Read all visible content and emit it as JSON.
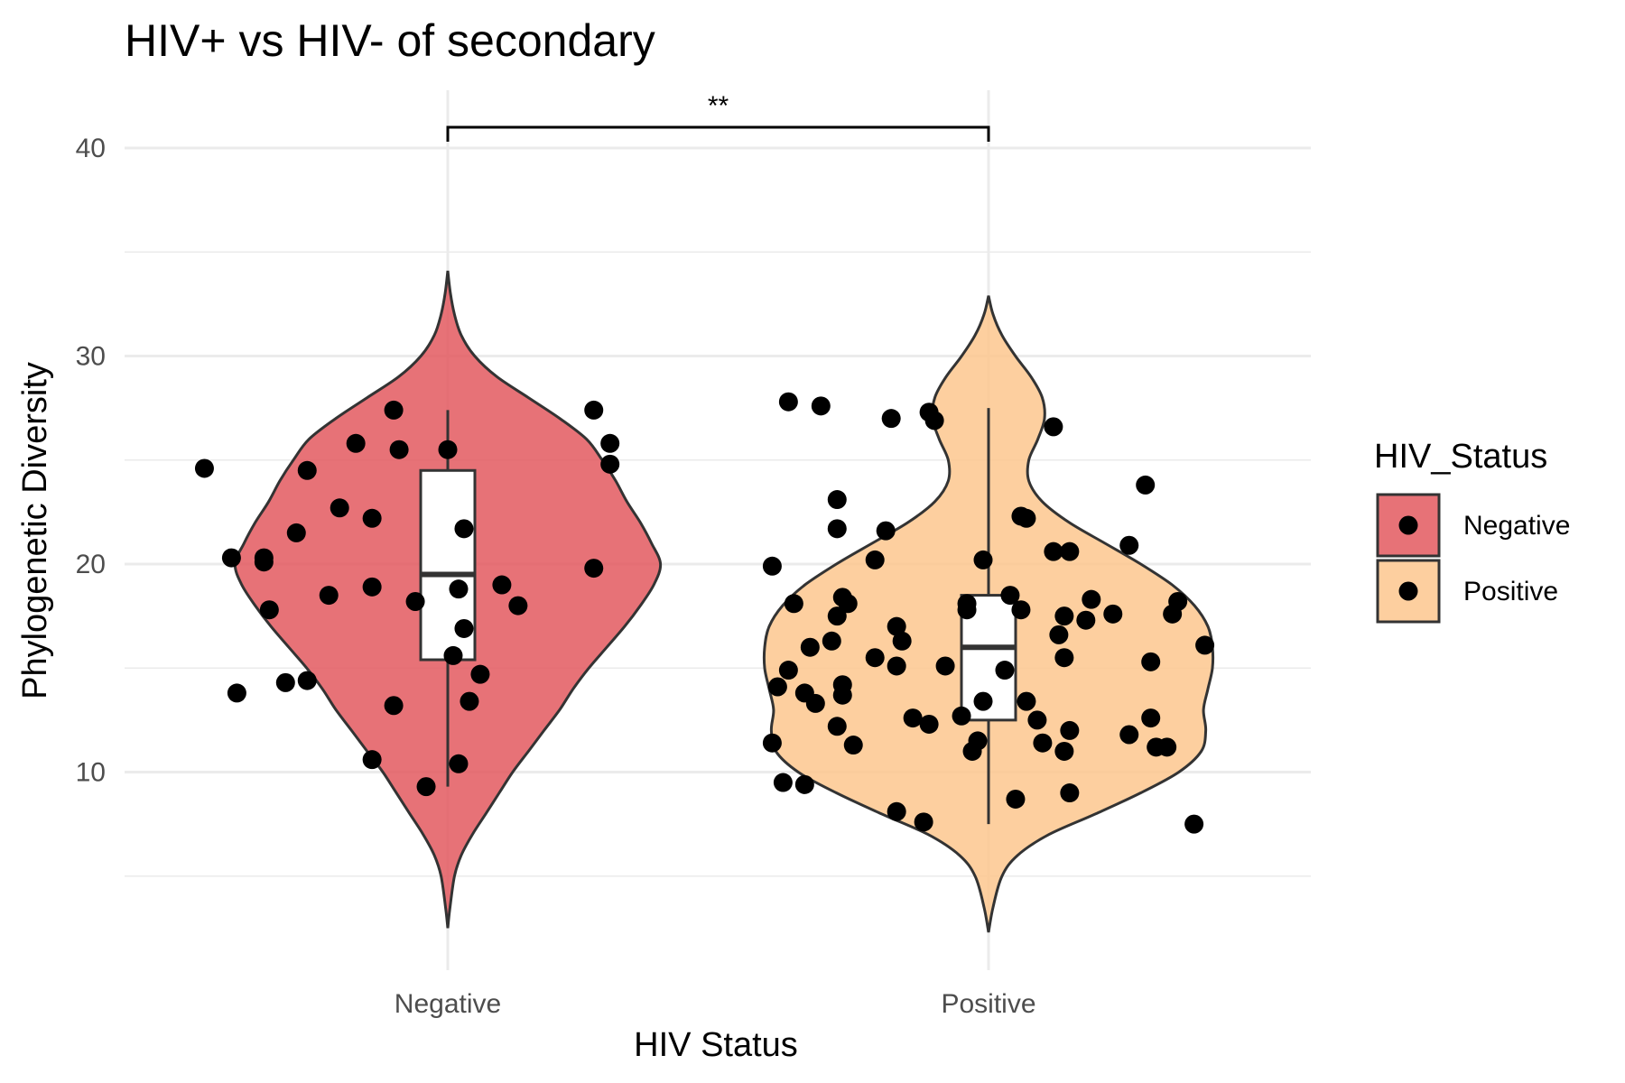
{
  "chart_data": {
    "type": "violin",
    "title": "HIV+ vs HIV- of secondary",
    "xlabel": "HIV Status",
    "ylabel": "Phylogenetic Diversity",
    "categories": [
      "Negative",
      "Positive"
    ],
    "ylim": [
      0,
      44
    ],
    "yticks": [
      "10",
      "20",
      "30",
      "40"
    ],
    "grid": true,
    "legend": {
      "title": "HIV_Status",
      "placement": "right",
      "entries": [
        "Negative",
        "Positive"
      ]
    },
    "colors": {
      "Negative": "#e3595f",
      "Positive": "#fdc78e",
      "outline": "#333333",
      "point": "#000000"
    },
    "significance": {
      "label": "**",
      "from": "Negative",
      "to": "Positive",
      "y": 41
    },
    "groups": [
      {
        "name": "Negative",
        "box": {
          "min": 9.3,
          "q1": 15.4,
          "median": 19.5,
          "q3": 24.5,
          "max": 27.4
        },
        "violin_range": [
          2.5,
          34.1
        ],
        "density": [
          [
            2.5,
            0.0
          ],
          [
            3.5,
            0.01
          ],
          [
            5,
            0.03
          ],
          [
            6,
            0.06
          ],
          [
            7,
            0.11
          ],
          [
            8,
            0.17
          ],
          [
            9,
            0.23
          ],
          [
            10,
            0.29
          ],
          [
            11,
            0.36
          ],
          [
            12,
            0.43
          ],
          [
            13,
            0.5
          ],
          [
            14,
            0.56
          ],
          [
            15,
            0.63
          ],
          [
            16,
            0.71
          ],
          [
            17,
            0.79
          ],
          [
            18,
            0.86
          ],
          [
            19,
            0.92
          ],
          [
            20,
            0.95
          ],
          [
            21,
            0.91
          ],
          [
            22,
            0.86
          ],
          [
            23,
            0.8
          ],
          [
            24,
            0.75
          ],
          [
            25,
            0.69
          ],
          [
            26,
            0.62
          ],
          [
            27,
            0.5
          ],
          [
            28,
            0.36
          ],
          [
            29,
            0.22
          ],
          [
            30,
            0.12
          ],
          [
            31,
            0.06
          ],
          [
            32,
            0.03
          ],
          [
            33,
            0.012
          ],
          [
            34.1,
            0.0
          ]
        ],
        "points": [
          [
            -0.45,
            24.6
          ],
          [
            -0.4,
            20.3
          ],
          [
            -0.39,
            13.8
          ],
          [
            -0.34,
            20.1
          ],
          [
            -0.34,
            20.3
          ],
          [
            -0.33,
            17.8
          ],
          [
            -0.3,
            14.3
          ],
          [
            -0.28,
            21.5
          ],
          [
            -0.26,
            14.4
          ],
          [
            -0.26,
            24.5
          ],
          [
            -0.22,
            18.5
          ],
          [
            -0.2,
            22.7
          ],
          [
            -0.17,
            25.8
          ],
          [
            -0.14,
            10.6
          ],
          [
            -0.14,
            18.9
          ],
          [
            -0.14,
            22.2
          ],
          [
            -0.1,
            13.2
          ],
          [
            -0.1,
            27.4
          ],
          [
            -0.09,
            25.5
          ],
          [
            -0.06,
            18.2
          ],
          [
            -0.04,
            9.3
          ],
          [
            0.0,
            25.5
          ],
          [
            0.01,
            15.6
          ],
          [
            0.02,
            18.8
          ],
          [
            0.02,
            10.4
          ],
          [
            0.03,
            21.7
          ],
          [
            0.03,
            16.9
          ],
          [
            0.04,
            13.4
          ],
          [
            0.06,
            14.7
          ],
          [
            0.1,
            19.0
          ],
          [
            0.13,
            18.0
          ],
          [
            0.27,
            19.8
          ],
          [
            0.27,
            27.4
          ],
          [
            0.3,
            25.8
          ],
          [
            0.3,
            24.8
          ]
        ]
      },
      {
        "name": "Positive",
        "box": {
          "min": 7.5,
          "q1": 12.5,
          "median": 16.0,
          "q3": 18.5,
          "max": 27.5
        },
        "violin_range": [
          2.3,
          32.9
        ],
        "density": [
          [
            2.3,
            0.0
          ],
          [
            3.5,
            0.02
          ],
          [
            5,
            0.06
          ],
          [
            6,
            0.13
          ],
          [
            7,
            0.27
          ],
          [
            8,
            0.48
          ],
          [
            9,
            0.68
          ],
          [
            10,
            0.85
          ],
          [
            11,
            0.95
          ],
          [
            12,
            0.97
          ],
          [
            13,
            0.96
          ],
          [
            14,
            0.98
          ],
          [
            15,
            1.0
          ],
          [
            16,
            1.0
          ],
          [
            17,
            0.98
          ],
          [
            18,
            0.92
          ],
          [
            19,
            0.82
          ],
          [
            20,
            0.68
          ],
          [
            21,
            0.52
          ],
          [
            22,
            0.36
          ],
          [
            23,
            0.24
          ],
          [
            24,
            0.18
          ],
          [
            25,
            0.18
          ],
          [
            26,
            0.22
          ],
          [
            27,
            0.25
          ],
          [
            28,
            0.24
          ],
          [
            29,
            0.19
          ],
          [
            30,
            0.12
          ],
          [
            31,
            0.06
          ],
          [
            32,
            0.02
          ],
          [
            32.9,
            0.0
          ]
        ],
        "points": [
          [
            -0.4,
            19.9
          ],
          [
            -0.4,
            11.4
          ],
          [
            -0.39,
            14.1
          ],
          [
            -0.38,
            9.5
          ],
          [
            -0.37,
            14.9
          ],
          [
            -0.37,
            27.8
          ],
          [
            -0.36,
            18.1
          ],
          [
            -0.34,
            9.4
          ],
          [
            -0.34,
            13.8
          ],
          [
            -0.33,
            16.0
          ],
          [
            -0.32,
            13.3
          ],
          [
            -0.31,
            27.6
          ],
          [
            -0.29,
            16.3
          ],
          [
            -0.28,
            12.2
          ],
          [
            -0.28,
            23.1
          ],
          [
            -0.28,
            21.7
          ],
          [
            -0.28,
            17.5
          ],
          [
            -0.27,
            13.7
          ],
          [
            -0.27,
            14.2
          ],
          [
            -0.27,
            18.4
          ],
          [
            -0.26,
            18.1
          ],
          [
            -0.25,
            11.3
          ],
          [
            -0.21,
            15.5
          ],
          [
            -0.21,
            20.2
          ],
          [
            -0.19,
            21.6
          ],
          [
            -0.18,
            27.0
          ],
          [
            -0.17,
            17.0
          ],
          [
            -0.17,
            8.1
          ],
          [
            -0.17,
            15.1
          ],
          [
            -0.16,
            16.3
          ],
          [
            -0.14,
            12.6
          ],
          [
            -0.12,
            7.6
          ],
          [
            -0.11,
            27.3
          ],
          [
            -0.11,
            12.3
          ],
          [
            -0.1,
            26.9
          ],
          [
            -0.08,
            15.1
          ],
          [
            -0.05,
            12.7
          ],
          [
            -0.04,
            18.1
          ],
          [
            -0.04,
            17.8
          ],
          [
            -0.03,
            11.0
          ],
          [
            -0.02,
            11.5
          ],
          [
            -0.01,
            13.4
          ],
          [
            -0.01,
            20.2
          ],
          [
            0.03,
            14.9
          ],
          [
            0.04,
            18.5
          ],
          [
            0.05,
            8.7
          ],
          [
            0.06,
            22.3
          ],
          [
            0.06,
            17.8
          ],
          [
            0.07,
            22.2
          ],
          [
            0.07,
            13.4
          ],
          [
            0.09,
            12.5
          ],
          [
            0.1,
            11.4
          ],
          [
            0.12,
            20.6
          ],
          [
            0.12,
            26.6
          ],
          [
            0.13,
            16.6
          ],
          [
            0.14,
            17.5
          ],
          [
            0.14,
            15.5
          ],
          [
            0.14,
            11.0
          ],
          [
            0.15,
            20.6
          ],
          [
            0.15,
            9.0
          ],
          [
            0.15,
            12.0
          ],
          [
            0.18,
            17.3
          ],
          [
            0.19,
            18.3
          ],
          [
            0.23,
            17.6
          ],
          [
            0.26,
            11.8
          ],
          [
            0.26,
            20.9
          ],
          [
            0.29,
            23.8
          ],
          [
            0.3,
            12.6
          ],
          [
            0.3,
            15.3
          ],
          [
            0.31,
            11.2
          ],
          [
            0.33,
            11.2
          ],
          [
            0.34,
            17.6
          ],
          [
            0.35,
            18.2
          ],
          [
            0.38,
            7.5
          ],
          [
            0.4,
            16.1
          ]
        ]
      }
    ]
  }
}
